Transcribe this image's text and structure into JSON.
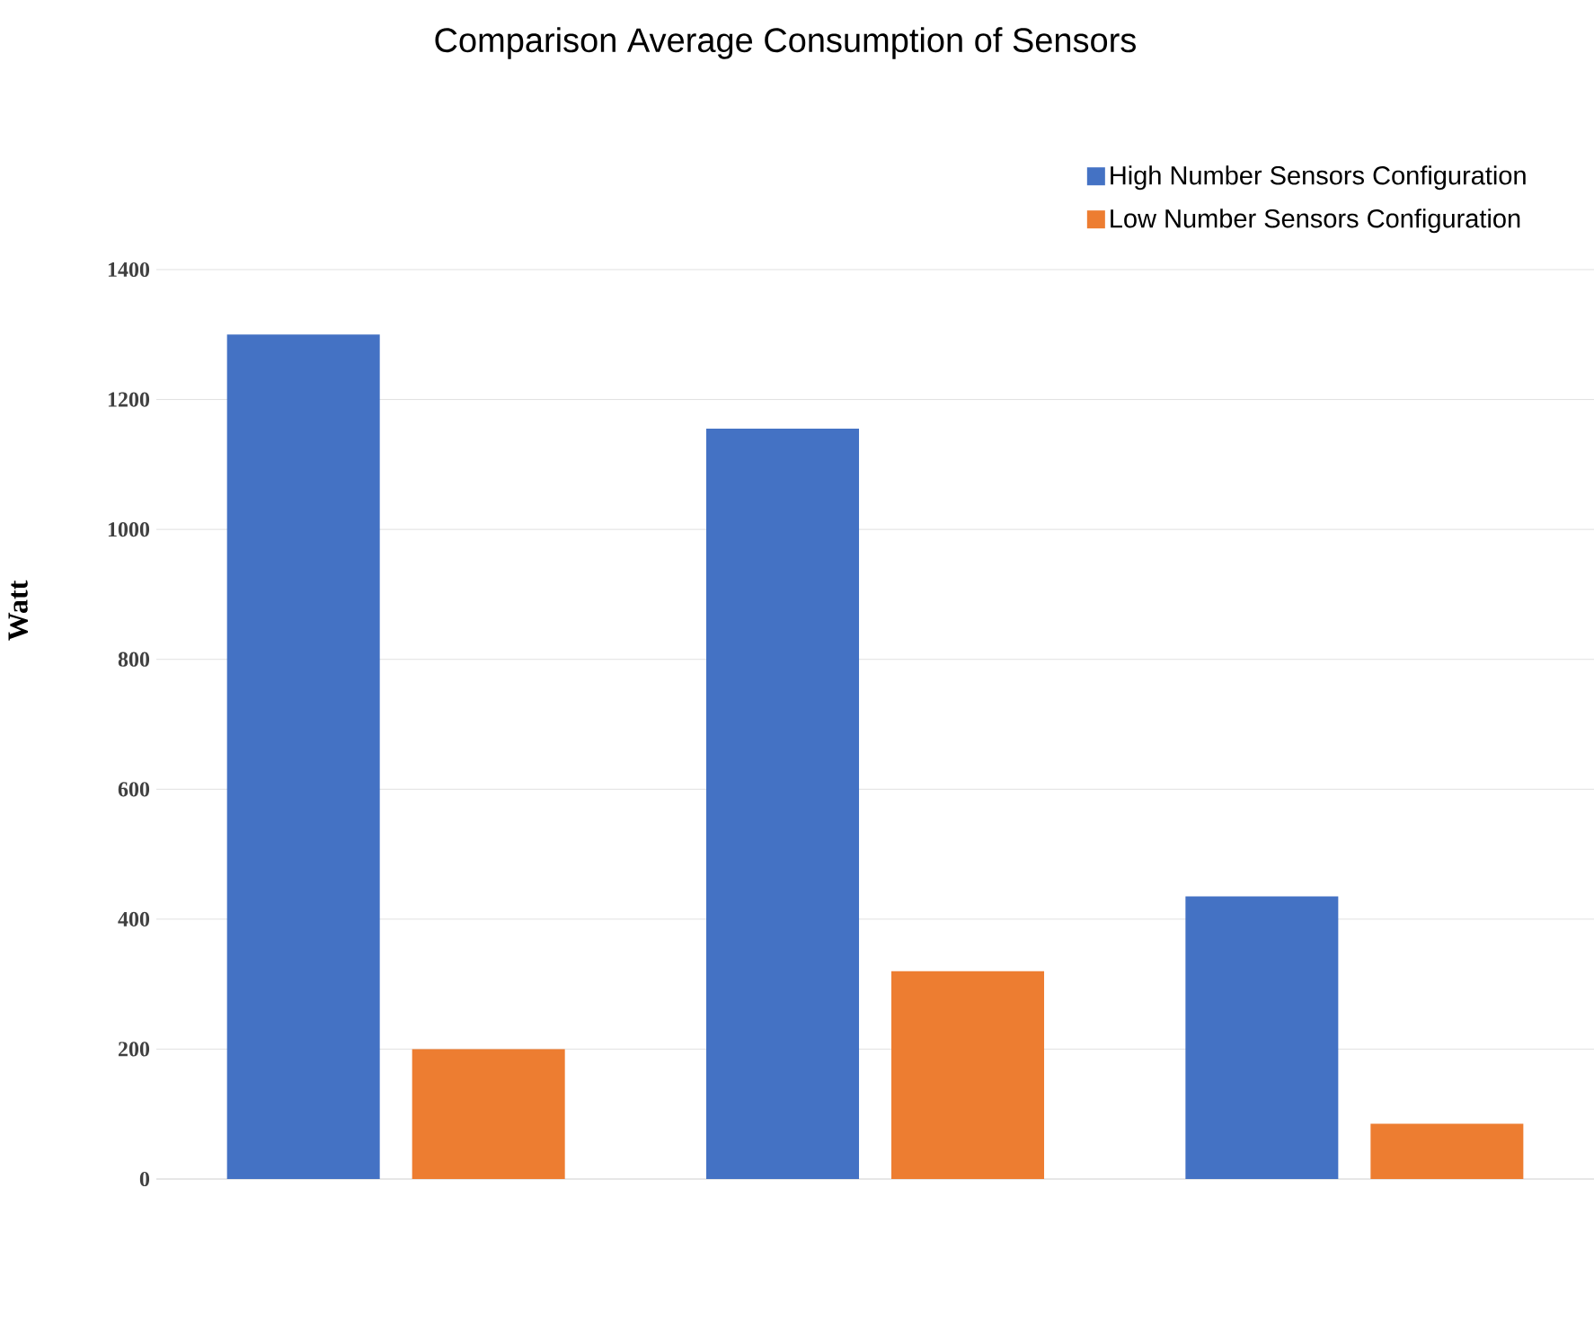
{
  "chart_data": {
    "type": "bar",
    "title": "Comparison Average Consumption of Sensors",
    "ylabel": "Watt",
    "categories": [
      null,
      null,
      null
    ],
    "series": [
      {
        "name": "High Number Sensors Configuration",
        "color": "#4472c4",
        "values": [
          1300,
          1155,
          435
        ]
      },
      {
        "name": "Low Number Sensors Configuration",
        "color": "#ed7d31",
        "values": [
          200,
          320,
          85
        ]
      }
    ],
    "ylim": [
      0,
      1400
    ],
    "yticks": [
      0,
      200,
      400,
      600,
      800,
      1000,
      1200,
      1400
    ],
    "grid": "y",
    "legend": "top right",
    "tick_labels": "y"
  }
}
